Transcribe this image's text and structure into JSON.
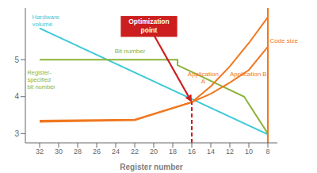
{
  "chart_data": {
    "type": "line",
    "x_label": "Register number",
    "xlim": [
      33.5,
      7.0
    ],
    "xticks": [
      32,
      30,
      28,
      26,
      24,
      22,
      20,
      18,
      16,
      14,
      12,
      10,
      8
    ],
    "ylim": [
      2.75,
      6.4
    ],
    "yticks": [
      3,
      4,
      5
    ],
    "grid": false,
    "series": [
      {
        "name": "Hardware\nvolume",
        "color": "#3ec8d8",
        "x": [
          32,
          8
        ],
        "values": [
          5.85,
          2.98
        ]
      },
      {
        "name": "Bit number",
        "color": "#8cb43a",
        "x": [
          32,
          17.5,
          17.5,
          10.5,
          8
        ],
        "values": [
          5.0,
          5.0,
          4.85,
          4.0,
          3.0
        ]
      },
      {
        "name": "Application\nA",
        "color": "#f07820",
        "x": [
          32,
          22,
          16,
          14,
          12,
          10,
          8
        ],
        "values": [
          3.35,
          3.38,
          3.85,
          4.28,
          4.82,
          5.45,
          6.15
        ]
      },
      {
        "name": "Application B",
        "color": "#f07820",
        "x": [
          32,
          22,
          16,
          14,
          12,
          10,
          8
        ],
        "values": [
          3.32,
          3.36,
          3.85,
          4.08,
          4.38,
          4.72,
          5.35
        ]
      },
      {
        "name": "Code size",
        "color": "#f07820",
        "x": [
          8,
          8
        ],
        "values": [
          2.75,
          6.4
        ]
      },
      {
        "color": "#cc1e1e",
        "line_style": "dashed",
        "x": [
          16,
          16
        ],
        "values": [
          2.75,
          3.85
        ]
      }
    ],
    "annotations": [
      {
        "text": "Register-\nspecified\nbit number",
        "color": "#8cb43a"
      },
      {
        "text": "Optimization\npoint",
        "color": "#cc1e1e",
        "x": 16,
        "y": 3.85
      }
    ]
  }
}
